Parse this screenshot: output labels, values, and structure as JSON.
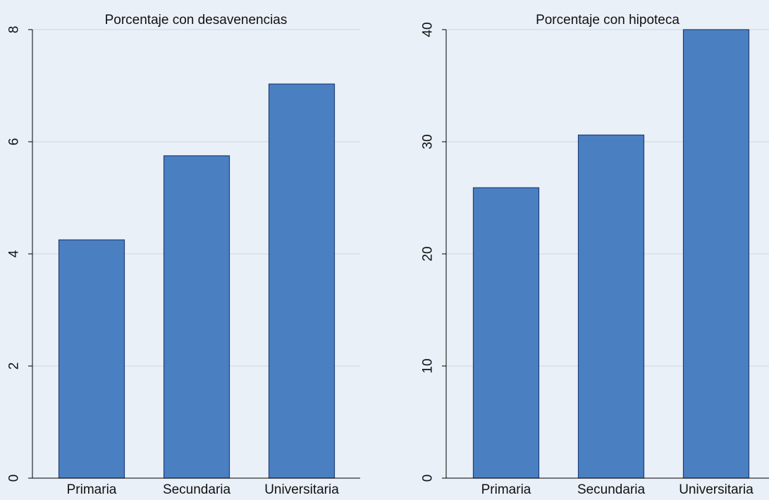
{
  "figure": {
    "background": "#eaf0f8",
    "bar_fill": "#4a80c1",
    "bar_stroke": "#1f3f7a",
    "grid_color": "#d0d6e0",
    "axis_color": "#000000"
  },
  "chart_data": [
    {
      "type": "bar",
      "title": "Porcentaje con desavenencias",
      "categories": [
        "Primaria",
        "Secundaria",
        "Universitaria"
      ],
      "values": [
        4.25,
        5.75,
        7.03
      ],
      "xlabel": "",
      "ylabel": "",
      "ylim": [
        0,
        8
      ],
      "yticks": [
        0,
        2,
        4,
        6,
        8
      ],
      "grid": true,
      "legend": "none"
    },
    {
      "type": "bar",
      "title": "Porcentaje con hipoteca",
      "categories": [
        "Primaria",
        "Secundaria",
        "Universitaria"
      ],
      "values": [
        25.9,
        30.6,
        40.0
      ],
      "xlabel": "",
      "ylabel": "",
      "ylim": [
        0,
        40
      ],
      "yticks": [
        0,
        10,
        20,
        30,
        40
      ],
      "grid": true,
      "legend": "none"
    }
  ]
}
